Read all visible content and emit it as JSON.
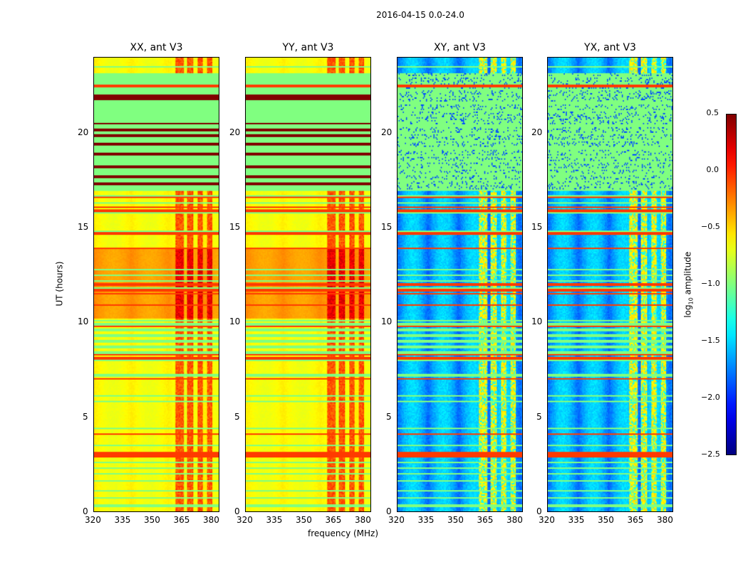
{
  "chart_data": {
    "type": "heatmap",
    "title": "2016-04-15 0.0-24.0",
    "xlabel": "frequency (MHz)",
    "ylabel": "UT (hours)",
    "xlim": [
      320,
      384
    ],
    "ylim": [
      0,
      24
    ],
    "xticks": [
      "320",
      "335",
      "350",
      "365",
      "380"
    ],
    "yticks": [
      "0",
      "5",
      "10",
      "15",
      "20"
    ],
    "colorbar": {
      "label": "log10 amplitude",
      "label_main": "log",
      "label_sub": "10",
      "label_tail": " amplitude",
      "range": [
        -2.5,
        0.5
      ],
      "ticks": [
        "0.5",
        "0.0",
        "−0.5",
        "−1.0",
        "−1.5",
        "−2.0",
        "−2.5"
      ],
      "colormap": "jet"
    },
    "panels": [
      {
        "title": "XX, ant V3",
        "kind": "auto",
        "base": -0.6
      },
      {
        "title": "YY, ant V3",
        "kind": "auto",
        "base": -0.6
      },
      {
        "title": "XY, ant V3",
        "kind": "cross",
        "base": -1.9
      },
      {
        "title": "YX, ant V3",
        "kind": "cross",
        "base": -1.9
      }
    ],
    "features": {
      "rfi_band_mhz": [
        [
          362,
          366
        ],
        [
          368,
          371
        ],
        [
          373,
          376
        ],
        [
          378,
          381
        ]
      ],
      "flagged_rows_hours": [
        0.3,
        0.7,
        1.1,
        1.6,
        2.0,
        2.3,
        2.6,
        3.5,
        4.4,
        5.8,
        6.1,
        7.2,
        8.0,
        8.4,
        8.7,
        9.0,
        9.3,
        9.6,
        9.9,
        10.1,
        11.8,
        12.2,
        12.5,
        12.8,
        14.8,
        15.8,
        16.3,
        16.7,
        17.0,
        17.5,
        17.8,
        18.1,
        18.5,
        18.8,
        19.2,
        19.6,
        20.0,
        20.4,
        21.2,
        21.6,
        22.3,
        23.0,
        23.5
      ],
      "bright_rows_hours": [
        2.9,
        3.0,
        3.1,
        4.1,
        7.0,
        8.1,
        8.3,
        9.8,
        10.9,
        11.5,
        11.7,
        12.0,
        13.9,
        14.7,
        15.9,
        16.1,
        16.6,
        22.5
      ],
      "saturated_rows_hours": [
        17.3,
        17.7,
        18.2,
        18.9,
        19.4,
        19.9,
        20.2,
        20.5,
        21.8,
        22.0
      ],
      "flagged_block_hours": [
        17.0,
        23.2
      ],
      "elevated_block_hours": [
        10.2,
        13.9
      ]
    }
  }
}
